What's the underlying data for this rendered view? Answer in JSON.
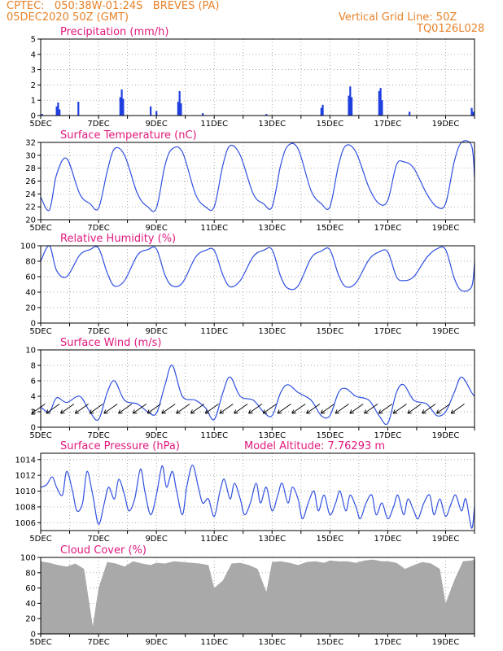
{
  "header": {
    "left_line1": "CPTEC:   050:38W-01:24S   BREVES (PA)",
    "left_line2": "05DEC2020 50Z (GMT)",
    "right_line1": "Vertical Grid Line: 50Z",
    "right_line2": "TQ0126L028"
  },
  "x_labels": [
    "5DEC",
    "7DEC",
    "9DEC",
    "11DEC",
    "13DEC",
    "15DEC",
    "17DEC",
    "19DEC"
  ],
  "colors": {
    "title": "#e0197d",
    "header": "#e8822a",
    "line": "#3050e0",
    "bar": "#1f3fe0",
    "cloud": "#a9a9a9"
  },
  "chart_data": [
    {
      "type": "bar",
      "title": "Precipitation (mm/h)",
      "ylim": [
        0,
        5
      ],
      "yticks": [
        0,
        1,
        2,
        3,
        4,
        5
      ],
      "xrange_days": [
        5,
        20
      ],
      "bars": [
        [
          5.05,
          0.1
        ],
        [
          5.55,
          0.6
        ],
        [
          5.6,
          0.85
        ],
        [
          5.65,
          0.4
        ],
        [
          6.3,
          0.9
        ],
        [
          7.75,
          1.2
        ],
        [
          7.8,
          1.7
        ],
        [
          7.85,
          1.1
        ],
        [
          8.8,
          0.6
        ],
        [
          9.0,
          0.3
        ],
        [
          9.75,
          0.9
        ],
        [
          9.8,
          1.6
        ],
        [
          9.85,
          0.8
        ],
        [
          10.6,
          0.15
        ],
        [
          12.8,
          0.1
        ],
        [
          14.7,
          0.5
        ],
        [
          14.75,
          0.7
        ],
        [
          15.65,
          1.3
        ],
        [
          15.7,
          1.9
        ],
        [
          15.75,
          1.2
        ],
        [
          16.7,
          1.6
        ],
        [
          16.75,
          1.8
        ],
        [
          16.8,
          1.0
        ],
        [
          17.75,
          0.25
        ],
        [
          19.9,
          0.5
        ],
        [
          19.95,
          0.25
        ]
      ]
    },
    {
      "type": "line",
      "title": "Surface Temperature (nC)",
      "ylim": [
        20,
        32
      ],
      "yticks": [
        20,
        22,
        24,
        26,
        28,
        30,
        32
      ],
      "x": [
        5.0,
        5.3,
        5.55,
        5.9,
        6.35,
        6.7,
        7.0,
        7.3,
        7.55,
        7.9,
        8.35,
        8.7,
        9.0,
        9.3,
        9.55,
        9.9,
        10.35,
        10.7,
        11.0,
        11.3,
        11.55,
        11.9,
        12.35,
        12.7,
        13.0,
        13.3,
        13.55,
        13.9,
        14.35,
        14.7,
        15.0,
        15.3,
        15.55,
        15.9,
        16.35,
        16.7,
        17.0,
        17.3,
        17.55,
        17.9,
        18.35,
        18.7,
        19.0,
        19.3,
        19.55,
        19.9,
        20.0
      ],
      "values": [
        23.5,
        21.5,
        27.0,
        29.5,
        24.0,
        22.5,
        21.8,
        27.5,
        31.0,
        30.0,
        24.0,
        22.0,
        21.8,
        28.5,
        31.0,
        30.5,
        24.0,
        22.0,
        22.0,
        28.5,
        31.5,
        30.0,
        24.0,
        22.5,
        22.0,
        28.5,
        31.5,
        31.0,
        24.5,
        22.5,
        22.0,
        28.5,
        31.5,
        30.5,
        25.0,
        22.5,
        23.0,
        28.5,
        29.0,
        28.0,
        24.0,
        22.0,
        22.5,
        29.0,
        32.0,
        31.5,
        26.5
      ]
    },
    {
      "type": "line",
      "title": "Relative Humidity (%)",
      "ylim": [
        0,
        100
      ],
      "yticks": [
        0,
        20,
        40,
        60,
        80,
        100
      ],
      "x": [
        5.0,
        5.3,
        5.55,
        5.9,
        6.35,
        6.7,
        7.0,
        7.3,
        7.55,
        7.9,
        8.35,
        8.7,
        9.0,
        9.3,
        9.55,
        9.9,
        10.35,
        10.7,
        11.0,
        11.3,
        11.55,
        11.9,
        12.35,
        12.7,
        13.0,
        13.3,
        13.55,
        13.9,
        14.35,
        14.7,
        15.0,
        15.3,
        15.55,
        15.9,
        16.35,
        16.7,
        17.0,
        17.3,
        17.55,
        17.9,
        18.35,
        18.7,
        19.0,
        19.3,
        19.55,
        19.9,
        20.0
      ],
      "values": [
        80,
        100,
        68,
        60,
        88,
        95,
        97,
        65,
        48,
        55,
        88,
        95,
        96,
        62,
        48,
        52,
        85,
        94,
        94,
        62,
        47,
        55,
        86,
        94,
        95,
        60,
        45,
        48,
        84,
        93,
        95,
        62,
        47,
        52,
        82,
        92,
        92,
        60,
        55,
        60,
        85,
        96,
        95,
        58,
        42,
        47,
        78
      ]
    },
    {
      "type": "line",
      "title": "Surface Wind (m/s)",
      "ylim": [
        0,
        10
      ],
      "yticks": [
        0,
        2,
        4,
        6,
        8,
        10
      ],
      "x": [
        5.0,
        5.3,
        5.55,
        5.9,
        6.35,
        6.7,
        7.0,
        7.3,
        7.55,
        7.9,
        8.35,
        8.7,
        9.0,
        9.3,
        9.55,
        9.9,
        10.35,
        10.7,
        11.0,
        11.3,
        11.55,
        11.9,
        12.35,
        12.7,
        13.0,
        13.3,
        13.55,
        13.9,
        14.35,
        14.7,
        15.0,
        15.3,
        15.55,
        15.9,
        16.35,
        16.7,
        17.0,
        17.3,
        17.55,
        17.9,
        18.35,
        18.7,
        19.0,
        19.3,
        19.55,
        19.9,
        20.0
      ],
      "values": [
        2.6,
        2.0,
        3.8,
        3.2,
        4.0,
        2.0,
        1.0,
        4.5,
        6.0,
        3.5,
        3.0,
        2.0,
        1.8,
        5.5,
        8.0,
        4.0,
        3.5,
        2.5,
        1.0,
        4.5,
        6.5,
        4.0,
        3.5,
        2.0,
        1.5,
        4.5,
        5.5,
        4.5,
        3.5,
        1.5,
        1.5,
        4.5,
        5.0,
        4.0,
        3.5,
        1.5,
        0.5,
        4.5,
        5.5,
        3.5,
        3.0,
        1.5,
        2.0,
        4.5,
        6.5,
        4.5,
        4.0
      ]
    },
    {
      "type": "line",
      "title": "Surface Pressure (hPa)",
      "annotation": "Model Altitude: 7.76293 m",
      "ylim": [
        1005,
        1014.8
      ],
      "yticks": [
        1006,
        1008,
        1010,
        1012,
        1014
      ],
      "x": [
        5.0,
        5.2,
        5.4,
        5.55,
        5.75,
        5.9,
        6.1,
        6.25,
        6.45,
        6.6,
        6.8,
        7.0,
        7.2,
        7.35,
        7.55,
        7.7,
        7.9,
        8.05,
        8.25,
        8.45,
        8.6,
        8.8,
        9.0,
        9.2,
        9.35,
        9.55,
        9.7,
        9.9,
        10.05,
        10.25,
        10.45,
        10.6,
        10.8,
        11.0,
        11.2,
        11.35,
        11.55,
        11.7,
        11.9,
        12.05,
        12.25,
        12.45,
        12.6,
        12.8,
        13.0,
        13.2,
        13.35,
        13.55,
        13.7,
        13.9,
        14.05,
        14.25,
        14.45,
        14.6,
        14.8,
        15.0,
        15.2,
        15.35,
        15.55,
        15.7,
        15.9,
        16.05,
        16.25,
        16.45,
        16.6,
        16.8,
        17.0,
        17.2,
        17.35,
        17.55,
        17.7,
        17.9,
        18.05,
        18.25,
        18.45,
        18.6,
        18.8,
        19.0,
        19.2,
        19.35,
        19.55,
        19.7,
        19.9,
        20.0
      ],
      "values": [
        1010.5,
        1010.8,
        1011.8,
        1010.5,
        1009.5,
        1012.5,
        1010.0,
        1007.5,
        1008.5,
        1012.5,
        1009.5,
        1005.8,
        1008.5,
        1010.5,
        1009.0,
        1011.5,
        1009.5,
        1007.5,
        1009.0,
        1012.8,
        1010.0,
        1007.0,
        1009.5,
        1013.2,
        1010.5,
        1012.5,
        1010.0,
        1007.0,
        1010.5,
        1013.3,
        1010.5,
        1008.5,
        1009.0,
        1006.8,
        1010.0,
        1011.5,
        1009.0,
        1011.0,
        1009.0,
        1007.0,
        1008.5,
        1011.0,
        1008.5,
        1010.5,
        1007.5,
        1009.5,
        1011.0,
        1008.5,
        1010.5,
        1009.0,
        1006.5,
        1008.5,
        1010.0,
        1007.5,
        1009.5,
        1007.0,
        1008.5,
        1010.0,
        1007.5,
        1009.5,
        1008.0,
        1006.5,
        1008.5,
        1009.5,
        1007.0,
        1008.5,
        1006.5,
        1008.0,
        1009.5,
        1007.0,
        1009.0,
        1007.5,
        1006.5,
        1008.5,
        1009.5,
        1007.0,
        1009.0,
        1006.8,
        1008.5,
        1009.5,
        1007.5,
        1009.0,
        1005.3,
        1008.0
      ]
    },
    {
      "type": "area",
      "title": "Cloud Cover (%)",
      "ylim": [
        0,
        100
      ],
      "yticks": [
        0,
        20,
        40,
        60,
        80,
        100
      ],
      "x": [
        5.0,
        5.3,
        5.6,
        5.9,
        6.2,
        6.5,
        6.8,
        7.0,
        7.3,
        7.6,
        7.9,
        8.2,
        8.5,
        8.8,
        9.0,
        9.3,
        9.6,
        9.9,
        10.2,
        10.5,
        10.8,
        11.0,
        11.3,
        11.6,
        11.9,
        12.2,
        12.5,
        12.8,
        13.0,
        13.3,
        13.6,
        13.9,
        14.2,
        14.5,
        14.8,
        15.0,
        15.3,
        15.6,
        15.9,
        16.2,
        16.5,
        16.8,
        17.0,
        17.3,
        17.6,
        17.9,
        18.2,
        18.5,
        18.8,
        19.0,
        19.3,
        19.6,
        19.9,
        20.0
      ],
      "values": [
        95,
        93,
        90,
        88,
        92,
        85,
        10,
        60,
        94,
        92,
        88,
        95,
        92,
        90,
        93,
        92,
        95,
        94,
        93,
        92,
        90,
        60,
        70,
        92,
        93,
        90,
        85,
        55,
        94,
        95,
        93,
        90,
        94,
        95,
        93,
        96,
        95,
        95,
        93,
        96,
        97,
        95,
        95,
        93,
        85,
        90,
        94,
        92,
        85,
        40,
        70,
        95,
        96,
        97
      ]
    }
  ]
}
